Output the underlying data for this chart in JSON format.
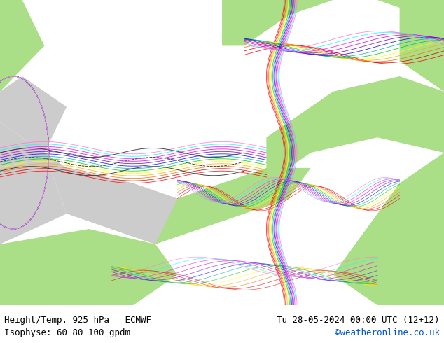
{
  "title_left": "Height/Temp. 925 hPa   ECMWF",
  "title_right": "Tu 28-05-2024 00:00 UTC (12+12)",
  "subtitle_left": "Isophyse: 60 80 100 gpdm",
  "subtitle_right": "©weatheronline.co.uk",
  "subtitle_right_color": "#0055cc",
  "background_color": "#ffffff",
  "label_color": "#000000",
  "fig_width": 6.34,
  "fig_height": 4.9,
  "dpi": 100,
  "map_bg_land": "#aade87",
  "map_bg_sea": "#f0f0f0",
  "bottom_bar_color": "#e8e8e8",
  "font_size_title": 9,
  "font_size_subtitle": 9,
  "bottom_bar_height": 0.11,
  "contour_colors": [
    "#ff0000",
    "#ff7700",
    "#ffff00",
    "#00ff00",
    "#00ffff",
    "#0000ff",
    "#ff00ff",
    "#aa00aa",
    "#000000"
  ],
  "image_path": null
}
